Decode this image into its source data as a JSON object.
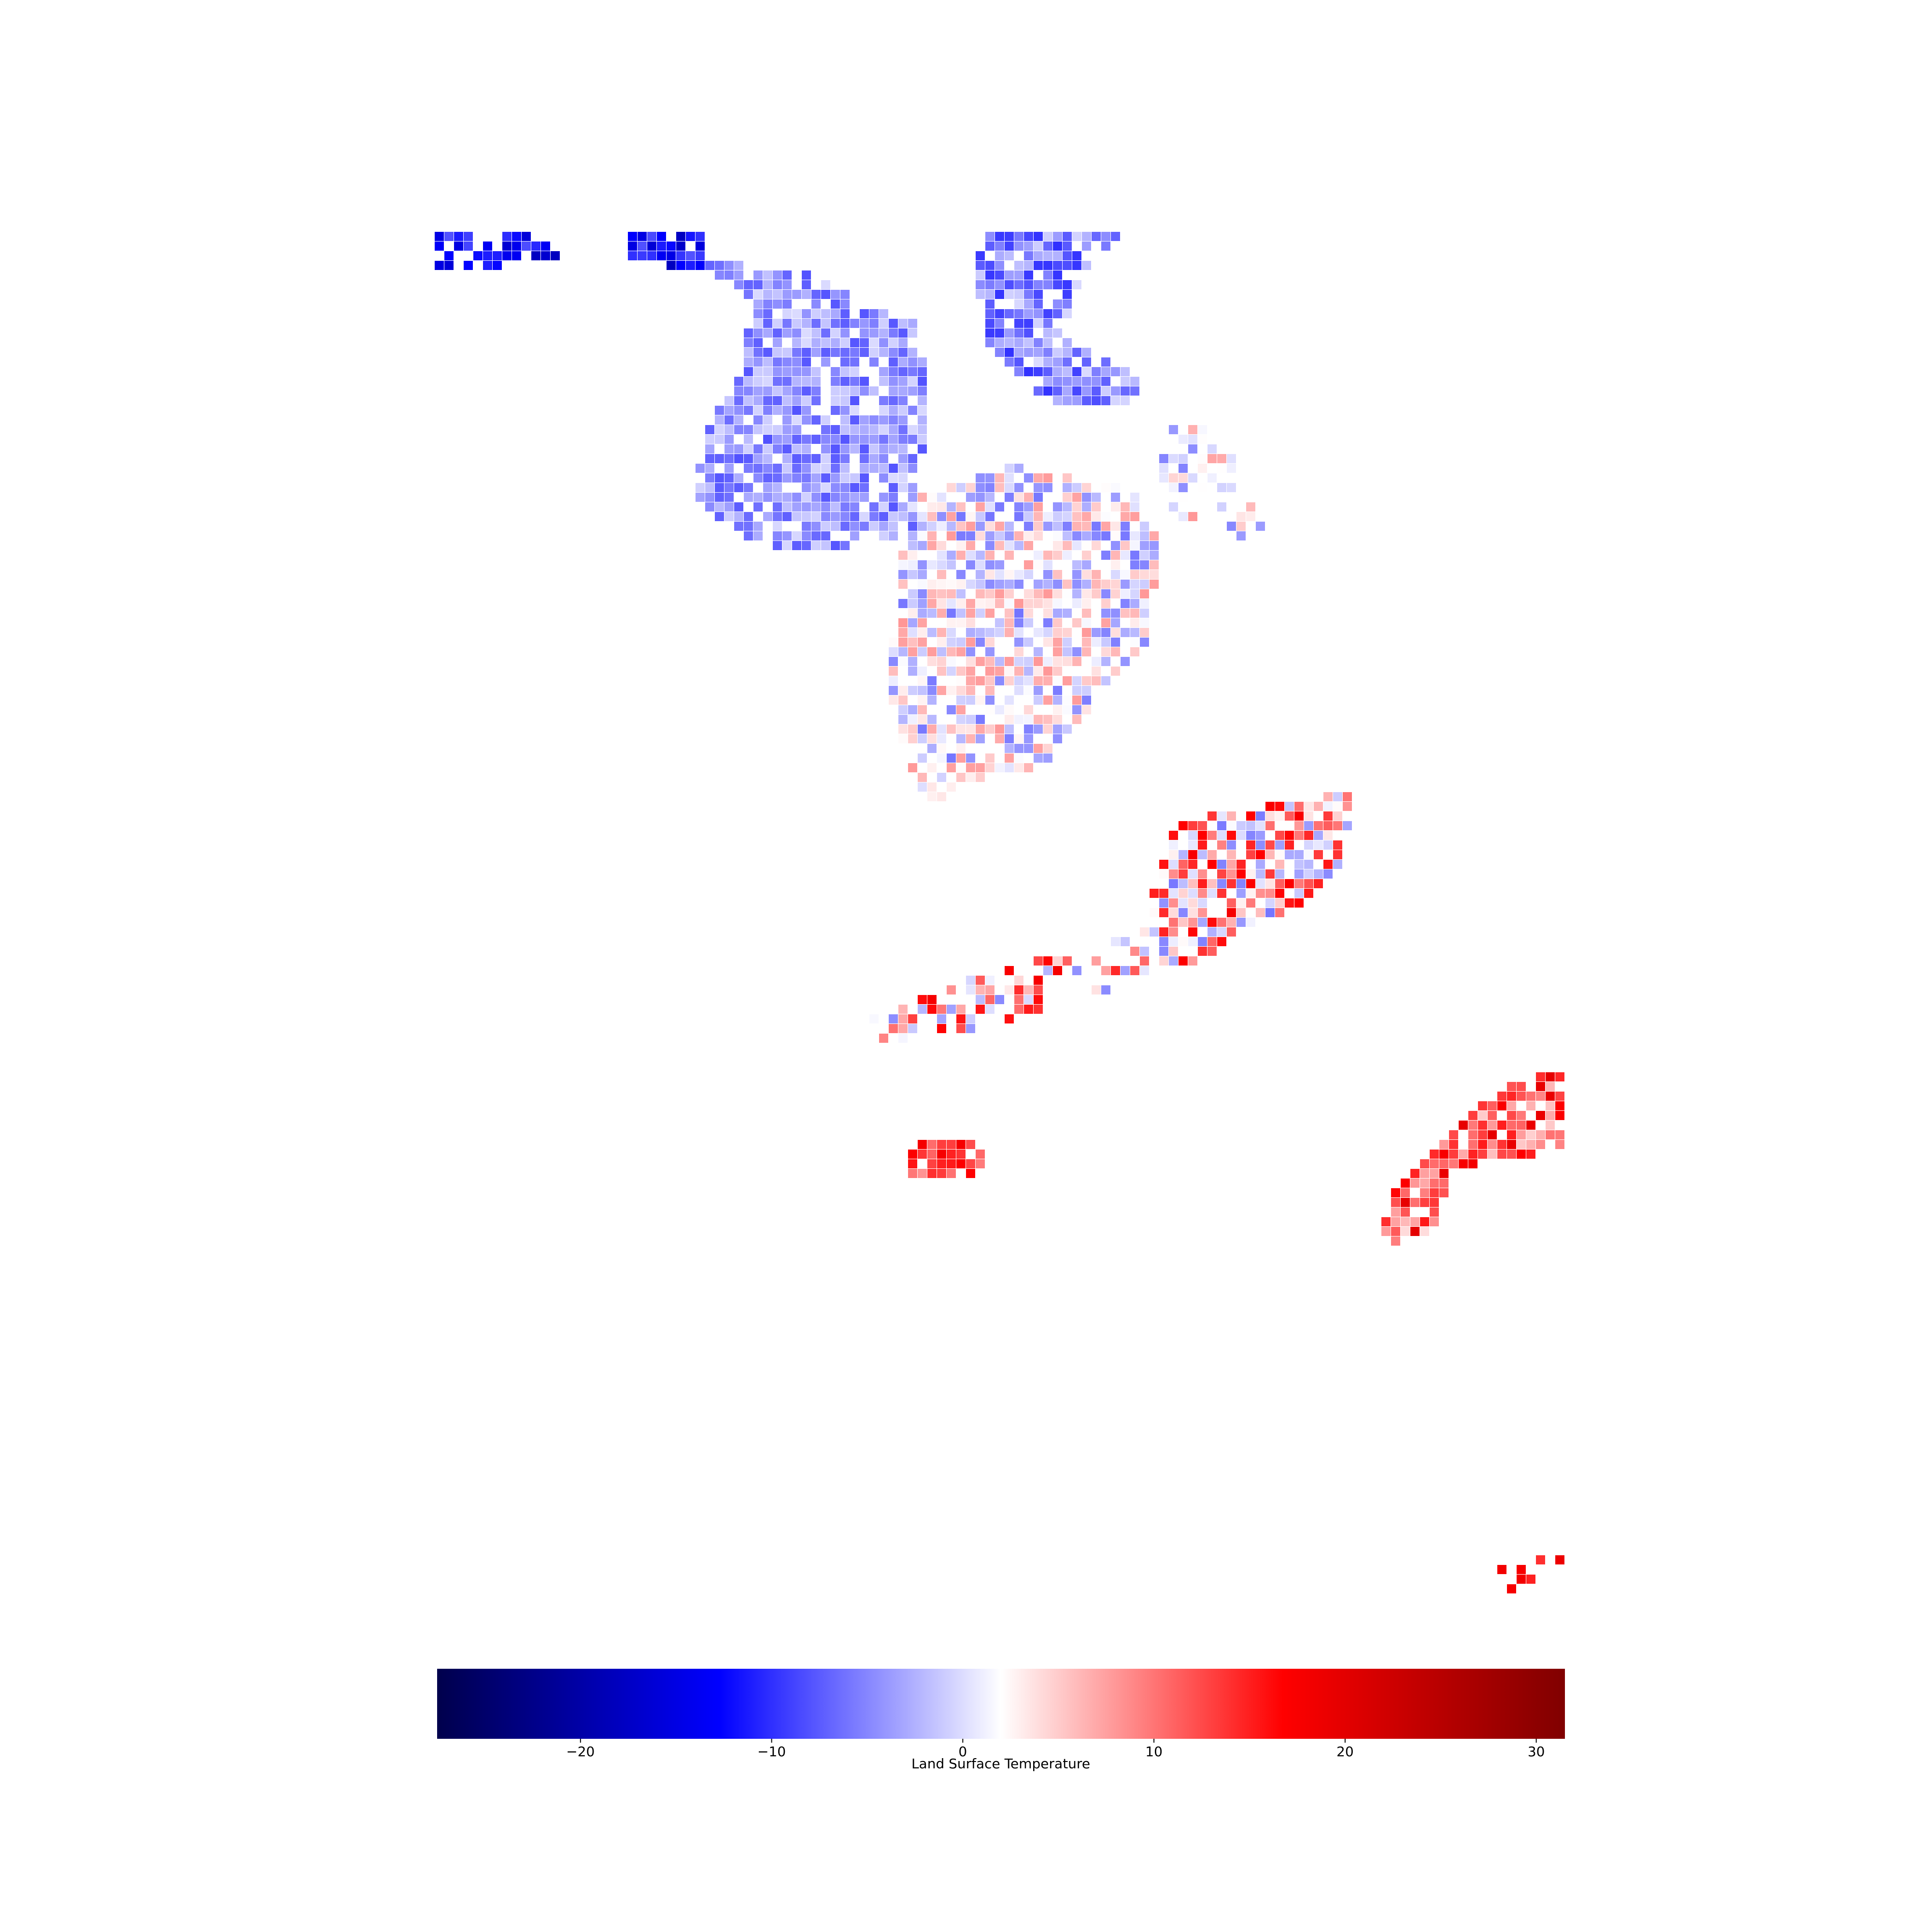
{
  "colorbar": {
    "label": "Land Surface Temperature",
    "min": -27.5,
    "max": 31.5,
    "ticks": [
      -20,
      -10,
      0,
      10,
      20,
      30
    ],
    "tick_labels": [
      "−20",
      "−10",
      "0",
      "10",
      "20",
      "30"
    ],
    "colormap": "seismic",
    "stops": [
      {
        "value": -27.5,
        "color": "#00004c"
      },
      {
        "value": -12.75,
        "color": "#0000ff"
      },
      {
        "value": 2.0,
        "color": "#ffffff"
      },
      {
        "value": 16.75,
        "color": "#ff0000"
      },
      {
        "value": 31.5,
        "color": "#800000"
      }
    ]
  },
  "chart_data": {
    "type": "heatmap",
    "title": "",
    "colorbar_label": "Land Surface Temperature",
    "value_range": [
      -27.5,
      31.5
    ],
    "regions": [
      {
        "id": "north-west-strip",
        "value_range": [
          -18,
          -8
        ]
      },
      {
        "id": "north-central-block",
        "value_range": [
          -8,
          0
        ]
      },
      {
        "id": "north-east-block",
        "value_range": [
          -10,
          0
        ]
      },
      {
        "id": "central-landmass",
        "value_range": [
          -6,
          8
        ]
      },
      {
        "id": "south-central-coast",
        "value_range": [
          -6,
          18
        ]
      },
      {
        "id": "south-west-island",
        "value_range": [
          8,
          18
        ]
      },
      {
        "id": "south-east-landmass",
        "value_range": [
          4,
          20
        ]
      },
      {
        "id": "far-south-islands",
        "value_range": [
          14,
          20
        ]
      }
    ]
  }
}
